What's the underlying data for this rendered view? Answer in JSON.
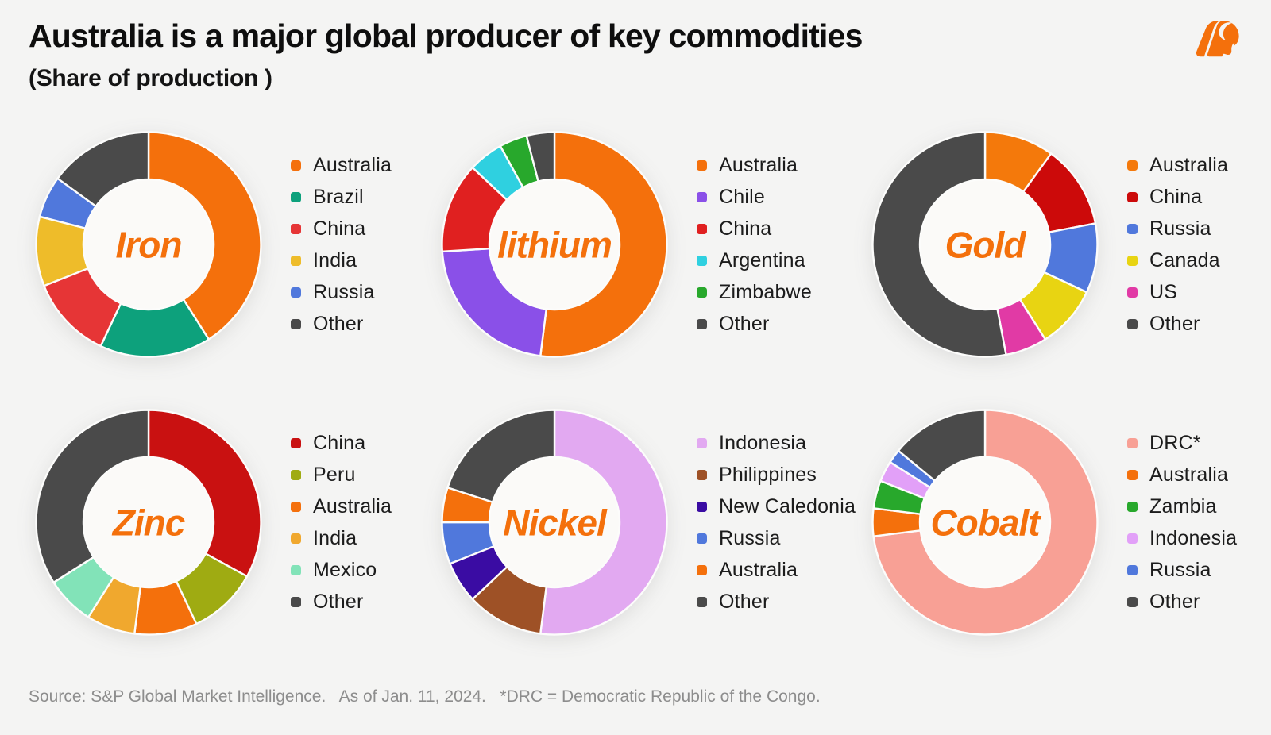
{
  "page": {
    "title": "Australia is a major global producer of key commodities",
    "subtitle": "(Share of production )",
    "source_note": "Source: S&P Global Market Intelligence.   As of Jan. 11, 2024.   *DRC = Democratic Republic of the Congo.",
    "background_color": "#f4f4f3",
    "accent_color": "#f4700c",
    "logo": "moomoo-bull-icon"
  },
  "chart_data": [
    {
      "type": "pie",
      "donut": true,
      "title": "Iron",
      "legend_position": "right",
      "units": "share of production, % (estimated from arc angles; no numeric labels shown)",
      "series": [
        {
          "label": "Australia",
          "value": 41,
          "color": "#f4700c"
        },
        {
          "label": "Brazil",
          "value": 16,
          "color": "#0da17c"
        },
        {
          "label": "China",
          "value": 12,
          "color": "#e63536"
        },
        {
          "label": "India",
          "value": 10,
          "color": "#eebc2a"
        },
        {
          "label": "Russia",
          "value": 6,
          "color": "#5078dc"
        },
        {
          "label": "Other",
          "value": 15,
          "color": "#4a4a4a"
        }
      ]
    },
    {
      "type": "pie",
      "donut": true,
      "title": "lithium",
      "legend_position": "right",
      "units": "share of production, % (estimated from arc angles; no numeric labels shown)",
      "series": [
        {
          "label": "Australia",
          "value": 52,
          "color": "#f4700c"
        },
        {
          "label": "Chile",
          "value": 22,
          "color": "#8a50e8"
        },
        {
          "label": "China",
          "value": 13,
          "color": "#e02020"
        },
        {
          "label": "Argentina",
          "value": 5,
          "color": "#2fd0e0"
        },
        {
          "label": "Zimbabwe",
          "value": 4,
          "color": "#28a82c"
        },
        {
          "label": "Other",
          "value": 4,
          "color": "#4a4a4a"
        }
      ]
    },
    {
      "type": "pie",
      "donut": true,
      "title": "Gold",
      "legend_position": "right",
      "units": "share of production, % (estimated from arc angles; no numeric labels shown)",
      "series": [
        {
          "label": "Australia",
          "value": 10,
          "color": "#f4790b"
        },
        {
          "label": "China",
          "value": 12,
          "color": "#cc0a0a"
        },
        {
          "label": "Russia",
          "value": 10,
          "color": "#5078dc"
        },
        {
          "label": "Canada",
          "value": 9,
          "color": "#e8d412"
        },
        {
          "label": "US",
          "value": 6,
          "color": "#e13aa5"
        },
        {
          "label": "Other",
          "value": 53,
          "color": "#4a4a4a"
        }
      ]
    },
    {
      "type": "pie",
      "donut": true,
      "title": "Zinc",
      "legend_position": "right",
      "units": "share of production, % (estimated from arc angles; no numeric labels shown)",
      "series": [
        {
          "label": "China",
          "value": 33,
          "color": "#c91111"
        },
        {
          "label": "Peru",
          "value": 10,
          "color": "#9fab12"
        },
        {
          "label": "Australia",
          "value": 9,
          "color": "#f4700c"
        },
        {
          "label": "India",
          "value": 7,
          "color": "#f0a82e"
        },
        {
          "label": "Mexico",
          "value": 7,
          "color": "#82e3b8"
        },
        {
          "label": "Other",
          "value": 34,
          "color": "#4a4a4a"
        }
      ]
    },
    {
      "type": "pie",
      "donut": true,
      "title": "Nickel",
      "legend_position": "right",
      "units": "share of production, % (estimated from arc angles; no numeric labels shown)",
      "series": [
        {
          "label": "Indonesia",
          "value": 52,
          "color": "#e2a9f1"
        },
        {
          "label": "Philippines",
          "value": 11,
          "color": "#9e5126"
        },
        {
          "label": "New Caledonia",
          "value": 6,
          "color": "#3a0ca3"
        },
        {
          "label": "Russia",
          "value": 6,
          "color": "#5078dc"
        },
        {
          "label": "Australia",
          "value": 5,
          "color": "#f4700c"
        },
        {
          "label": "Other",
          "value": 20,
          "color": "#4a4a4a"
        }
      ]
    },
    {
      "type": "pie",
      "donut": true,
      "title": "Cobalt",
      "legend_position": "right",
      "units": "share of production, % (estimated from arc angles; no numeric labels shown)",
      "series": [
        {
          "label": "DRC*",
          "value": 73,
          "color": "#f8a095"
        },
        {
          "label": "Australia",
          "value": 4,
          "color": "#f4700c"
        },
        {
          "label": "Zambia",
          "value": 4,
          "color": "#28a82c"
        },
        {
          "label": "Indonesia",
          "value": 3,
          "color": "#e2a0f8"
        },
        {
          "label": "Russia",
          "value": 2,
          "color": "#5078dc"
        },
        {
          "label": "Other",
          "value": 14,
          "color": "#4a4a4a"
        }
      ]
    }
  ]
}
